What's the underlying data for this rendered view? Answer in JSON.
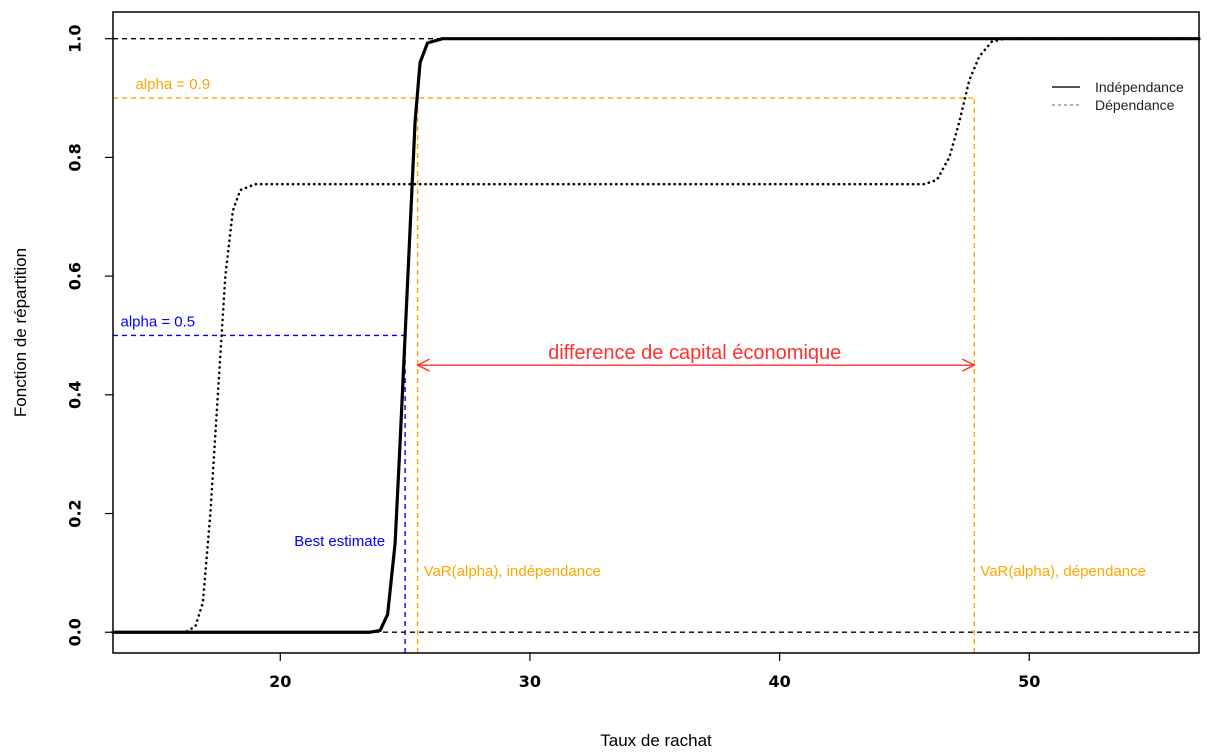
{
  "chart_data": {
    "type": "line",
    "xlabel": "Taux de rachat",
    "ylabel": "Fonction de répartition",
    "xlim": [
      13.3,
      56.8
    ],
    "ylim": [
      -0.035,
      1.045
    ],
    "x_ticks": [
      20,
      30,
      40,
      50
    ],
    "y_ticks": [
      0.0,
      0.2,
      0.4,
      0.6,
      0.8,
      1.0
    ],
    "x_tick_labels": [
      "20",
      "30",
      "40",
      "50"
    ],
    "y_tick_labels": [
      "0.0",
      "0.2",
      "0.4",
      "0.6",
      "0.8",
      "1.0"
    ],
    "series": [
      {
        "name": "Indépendance",
        "style": "solid",
        "color": "#000000",
        "points": [
          [
            13.3,
            0
          ],
          [
            23.6,
            0
          ],
          [
            24.0,
            0.003
          ],
          [
            24.3,
            0.03
          ],
          [
            24.6,
            0.15
          ],
          [
            24.8,
            0.32
          ],
          [
            25.0,
            0.5
          ],
          [
            25.2,
            0.68
          ],
          [
            25.4,
            0.86
          ],
          [
            25.6,
            0.96
          ],
          [
            25.9,
            0.993
          ],
          [
            26.5,
            1
          ],
          [
            56.8,
            1
          ]
        ]
      },
      {
        "name": "Dépendance",
        "style": "dotted",
        "color": "#000000",
        "points": [
          [
            13.3,
            0
          ],
          [
            16.2,
            0
          ],
          [
            16.6,
            0.01
          ],
          [
            16.9,
            0.05
          ],
          [
            17.2,
            0.2
          ],
          [
            17.5,
            0.4
          ],
          [
            17.8,
            0.6
          ],
          [
            18.1,
            0.71
          ],
          [
            18.4,
            0.745
          ],
          [
            19.0,
            0.755
          ],
          [
            45.8,
            0.755
          ],
          [
            46.3,
            0.762
          ],
          [
            46.8,
            0.8
          ],
          [
            47.2,
            0.86
          ],
          [
            47.6,
            0.93
          ],
          [
            48.0,
            0.97
          ],
          [
            48.5,
            0.995
          ],
          [
            49.0,
            1
          ],
          [
            56.8,
            1
          ]
        ]
      }
    ],
    "reference_lines": [
      {
        "type": "h",
        "y": 1.0,
        "color": "#000000",
        "x_from": 13.3,
        "x_to": 56.8
      },
      {
        "type": "h",
        "y": 0.0,
        "color": "#000000",
        "x_from": 13.3,
        "x_to": 56.8
      },
      {
        "type": "h",
        "y": 0.9,
        "color": "#FFA500",
        "x_from": 13.3,
        "x_to": 47.8
      },
      {
        "type": "h",
        "y": 0.5,
        "color": "#0000FF",
        "x_from": 13.3,
        "x_to": 25.0
      },
      {
        "type": "v",
        "x": 25.0,
        "color": "#0000FF",
        "y_from": -0.035,
        "y_to": 0.5
      },
      {
        "type": "v",
        "x": 25.5,
        "color": "#FFA500",
        "y_from": -0.035,
        "y_to": 0.9
      },
      {
        "type": "v",
        "x": 47.8,
        "color": "#FFA500",
        "y_from": -0.035,
        "y_to": 0.9
      }
    ],
    "arrow": {
      "x_from": 25.5,
      "x_to": 47.8,
      "y": 0.45,
      "color": "#FF3030"
    },
    "annotations": [
      {
        "text": "alpha = 0.9",
        "x": 14.2,
        "y": 0.915,
        "color": "#FFA500"
      },
      {
        "text": "alpha = 0.5",
        "x": 13.6,
        "y": 0.515,
        "color": "#0000FF"
      },
      {
        "text": "difference de capital économique",
        "x": 36.6,
        "y": 0.46,
        "color": "#FF3030"
      },
      {
        "text": "Best estimate",
        "x": 24.2,
        "y": 0.145,
        "color": "#0000FF"
      },
      {
        "text": "VaR(alpha), indépendance",
        "x": 25.5,
        "y": 0.095,
        "color": "#FFA500"
      },
      {
        "text": "VaR(alpha), dépendance",
        "x": 47.8,
        "y": 0.095,
        "color": "#FFA500"
      }
    ],
    "legend": {
      "position": "top-right",
      "entries": [
        {
          "label": "Indépendance",
          "style": "solid"
        },
        {
          "label": "Dépendance",
          "style": "dotted"
        }
      ]
    },
    "grid": false
  }
}
